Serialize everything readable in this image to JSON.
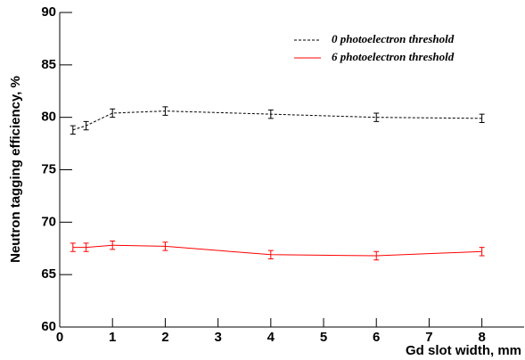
{
  "chart_data": {
    "type": "line",
    "x_label": "Gd slot width, mm",
    "y_label": "Neutron tagging efficiency, %",
    "x": [
      0.25,
      0.5,
      1,
      2,
      4,
      6,
      8
    ],
    "series": [
      {
        "name": "0 photoelectron threshold",
        "color": "#000000",
        "dash": true,
        "values": [
          78.8,
          79.2,
          80.4,
          80.6,
          80.3,
          80.0,
          79.9
        ],
        "errors": [
          0.4,
          0.4,
          0.4,
          0.4,
          0.4,
          0.4,
          0.4
        ]
      },
      {
        "name": "6 photoelectron threshold",
        "color": "#ff0000",
        "dash": false,
        "values": [
          67.6,
          67.6,
          67.8,
          67.7,
          66.9,
          66.8,
          67.2
        ],
        "errors": [
          0.4,
          0.4,
          0.4,
          0.4,
          0.4,
          0.4,
          0.4
        ]
      }
    ],
    "xlim": [
      0,
      8.8
    ],
    "ylim": [
      60,
      90
    ],
    "xticks": [
      0,
      1,
      2,
      3,
      4,
      5,
      6,
      7,
      8
    ],
    "yticks": [
      60,
      65,
      70,
      75,
      80,
      85,
      90
    ],
    "legend": "top-right"
  }
}
